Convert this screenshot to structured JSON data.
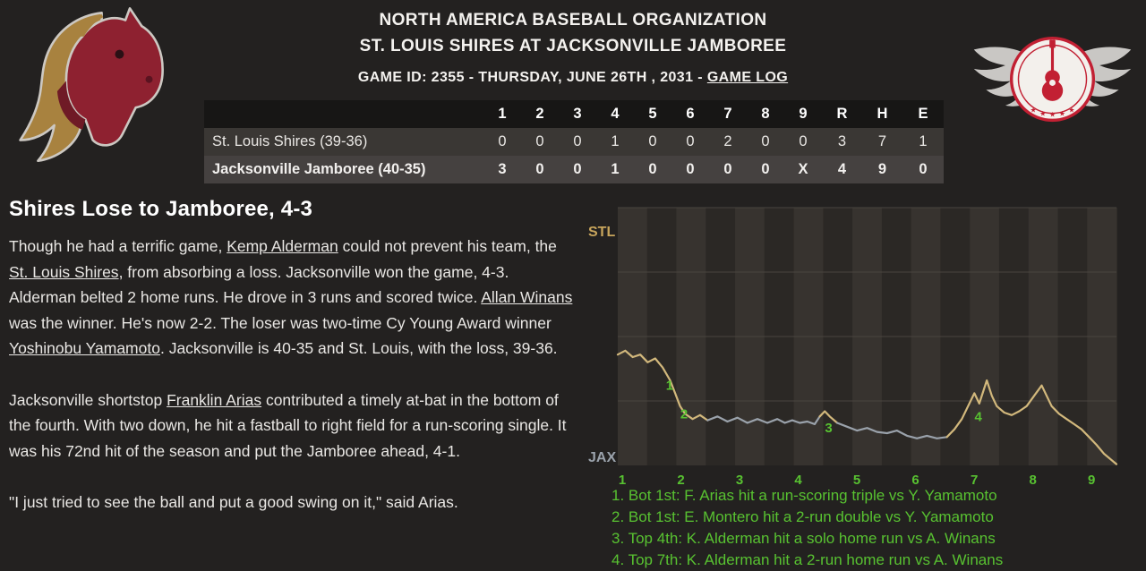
{
  "colors": {
    "green": "#58c231",
    "line_tan": "#d2b87c",
    "line_gray": "#9aa2ab",
    "stl_label": "#c8a55c",
    "jax_label": "#9aa2ab",
    "stripe_light": "#37332f",
    "stripe_dark": "#2b2825",
    "grid": "#4a453f"
  },
  "header": {
    "org_title": "NORTH AMERICA BASEBALL ORGANIZATION",
    "matchup": "ST. LOUIS SHIRES AT JACKSONVILLE JAMBOREE",
    "game_info_prefix": "GAME ID: 2355 - THURSDAY, JUNE 26TH , 2031 - ",
    "game_log_link": "GAME LOG",
    "left_logo_icon": "horse-head",
    "right_logo_icon": "winged-guitar"
  },
  "linescore": {
    "columns": [
      "1",
      "2",
      "3",
      "4",
      "5",
      "6",
      "7",
      "8",
      "9",
      "R",
      "H",
      "E"
    ],
    "rows": [
      {
        "team": "St. Louis Shires (39-36)",
        "innings": [
          "0",
          "0",
          "0",
          "1",
          "0",
          "0",
          "2",
          "0",
          "0"
        ],
        "r": "3",
        "h": "7",
        "e": "1"
      },
      {
        "team": "Jacksonville Jamboree (40-35)",
        "innings": [
          "3",
          "0",
          "0",
          "1",
          "0",
          "0",
          "0",
          "0",
          "X"
        ],
        "r": "4",
        "h": "9",
        "e": "0"
      }
    ]
  },
  "article": {
    "headline": "Shires Lose to Jamboree, 4-3",
    "paragraphs": [
      {
        "segments": [
          {
            "t": "Though he had a terrific game, "
          },
          {
            "t": "Kemp Alderman",
            "link": true
          },
          {
            "t": " could not prevent his team, the "
          },
          {
            "t": "St. Louis Shires",
            "link": true
          },
          {
            "t": ", from absorbing a loss. Jacksonville won the game, 4-3. Alderman belted 2 home runs. He drove in 3 runs and scored twice. "
          },
          {
            "t": "Allan Winans",
            "link": true
          },
          {
            "t": " was the winner. He's now 2-2. The loser was two-time Cy Young Award winner "
          },
          {
            "t": "Yoshinobu Yamamoto",
            "link": true
          },
          {
            "t": ". Jacksonville is 40-35 and St. Louis, with the loss, 39-36."
          }
        ]
      },
      {
        "segments": [
          {
            "t": "Jacksonville shortstop "
          },
          {
            "t": "Franklin Arias",
            "link": true
          },
          {
            "t": " contributed a timely at-bat in the bottom of the fourth. With two down, he hit a fastball to right field for a run-scoring single. It was his 72nd hit of the season and put the Jamboree ahead, 4-1."
          }
        ]
      },
      {
        "segments": [
          {
            "t": "\"I just tried to see the ball and put a good swing on it,\" said Arias."
          }
        ]
      }
    ]
  },
  "chart_data": {
    "type": "line",
    "y_labels": {
      "top": "STL",
      "bottom": "JAX"
    },
    "x_labels": [
      "1",
      "2",
      "3",
      "4",
      "5",
      "6",
      "7",
      "8",
      "9"
    ],
    "y_axis": "win probability (top = STL 100%, bottom = JAX 100%)",
    "segments": [
      {
        "color": "tan",
        "points": [
          [
            0,
            43
          ],
          [
            1.5,
            44.5
          ],
          [
            3,
            42
          ],
          [
            4.5,
            43
          ],
          [
            6,
            40
          ],
          [
            7.5,
            41.5
          ],
          [
            9,
            38
          ],
          [
            10.5,
            33
          ],
          [
            11.5,
            28
          ],
          [
            12.5,
            23
          ],
          [
            13.5,
            20
          ],
          [
            15,
            18
          ],
          [
            16.5,
            19.5
          ],
          [
            18,
            17.5
          ]
        ]
      },
      {
        "color": "gray",
        "points": [
          [
            18,
            17.5
          ],
          [
            20,
            19
          ],
          [
            22,
            17
          ],
          [
            24,
            18.5
          ],
          [
            26,
            16.5
          ],
          [
            28,
            18
          ],
          [
            30,
            16.5
          ],
          [
            32,
            18
          ],
          [
            33.5,
            16.5
          ],
          [
            35,
            17.5
          ],
          [
            36.5,
            16.5
          ],
          [
            38,
            17
          ],
          [
            39.5,
            16
          ],
          [
            40.5,
            19
          ]
        ]
      },
      {
        "color": "tan",
        "points": [
          [
            40.5,
            19
          ],
          [
            41.5,
            21
          ],
          [
            42.5,
            19
          ],
          [
            44,
            16.5
          ]
        ]
      },
      {
        "color": "gray",
        "points": [
          [
            44,
            16.5
          ],
          [
            46,
            15
          ],
          [
            48,
            13.5
          ],
          [
            50,
            14.5
          ],
          [
            52,
            13
          ],
          [
            54,
            12.5
          ],
          [
            56,
            13.5
          ],
          [
            58,
            11.5
          ],
          [
            60,
            10.5
          ],
          [
            62,
            11.5
          ],
          [
            64,
            10.5
          ],
          [
            66,
            11
          ]
        ]
      },
      {
        "color": "tan",
        "points": [
          [
            66,
            11
          ],
          [
            67.5,
            14
          ],
          [
            69,
            18
          ],
          [
            70.5,
            24
          ],
          [
            71.5,
            28
          ],
          [
            72.5,
            24
          ],
          [
            74,
            33
          ],
          [
            75,
            27
          ],
          [
            76,
            23
          ],
          [
            77.5,
            20.5
          ],
          [
            79,
            19.5
          ],
          [
            80.5,
            21
          ],
          [
            82,
            23
          ],
          [
            83.5,
            27
          ],
          [
            85,
            31
          ],
          [
            86,
            27
          ],
          [
            87,
            23
          ],
          [
            88.5,
            20
          ],
          [
            90,
            18
          ],
          [
            91.5,
            16
          ],
          [
            93,
            14
          ],
          [
            94.5,
            11
          ],
          [
            96,
            8
          ],
          [
            97.5,
            4.5
          ],
          [
            100,
            0.5
          ]
        ]
      }
    ],
    "markers": [
      {
        "n": "1",
        "x": 10.4,
        "p": 31
      },
      {
        "n": "2",
        "x": 13.3,
        "p": 20
      },
      {
        "n": "3",
        "x": 42.3,
        "p": 14.5
      },
      {
        "n": "4",
        "x": 72.3,
        "p": 19
      }
    ],
    "events": [
      {
        "n": "1",
        "text": "Bot 1st: F. Arias hit a run-scoring triple vs Y. Yamamoto"
      },
      {
        "n": "2",
        "text": "Bot 1st: E. Montero hit a 2-run double vs Y. Yamamoto"
      },
      {
        "n": "3",
        "text": "Top 4th: K. Alderman hit a solo home run vs A. Winans"
      },
      {
        "n": "4",
        "text": "Top 7th: K. Alderman hit a 2-run home run vs A. Winans"
      }
    ]
  }
}
